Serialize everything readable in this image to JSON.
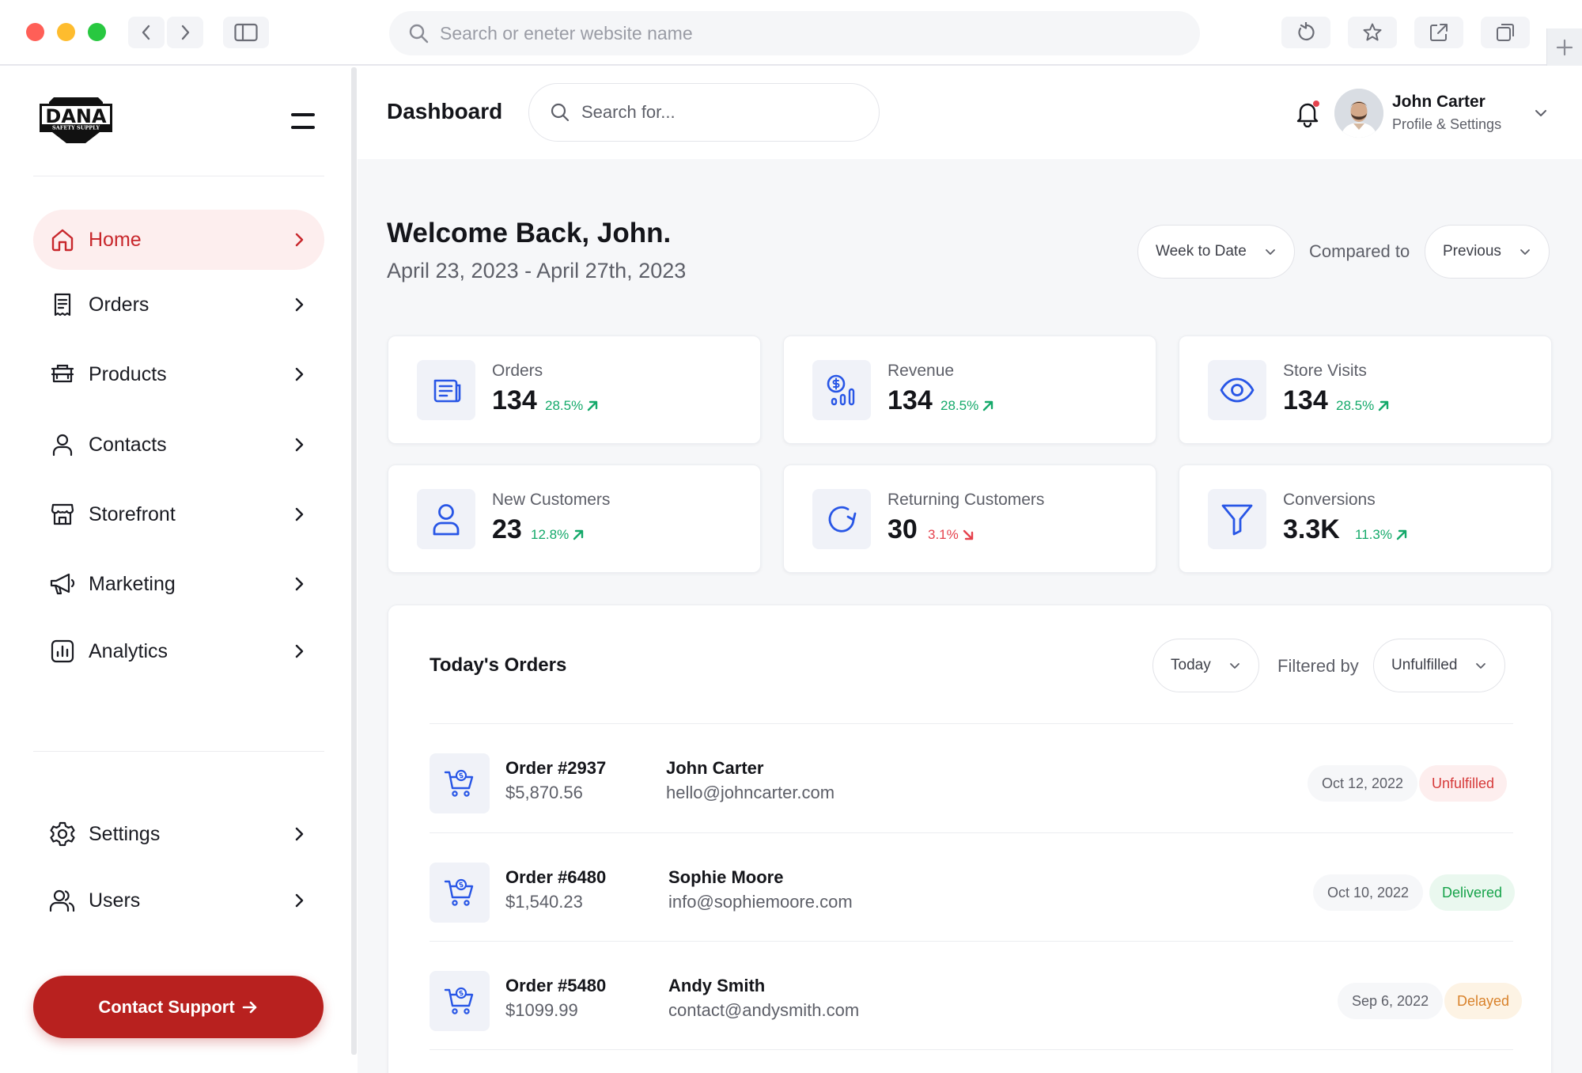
{
  "browser": {
    "url_placeholder": "Search or eneter website name",
    "traffic_colors": [
      "#ff5f57",
      "#febc2e",
      "#28c840"
    ]
  },
  "brand": {
    "logo_text": "DANA",
    "logo_subtext": "SAFETY SUPPLY"
  },
  "sidebar": {
    "items": [
      {
        "label": "Home",
        "icon": "home-icon",
        "active": true
      },
      {
        "label": "Orders",
        "icon": "receipt-icon"
      },
      {
        "label": "Products",
        "icon": "products-icon"
      },
      {
        "label": "Contacts",
        "icon": "user-icon"
      },
      {
        "label": "Storefront",
        "icon": "storefront-icon"
      },
      {
        "label": "Marketing",
        "icon": "megaphone-icon"
      },
      {
        "label": "Analytics",
        "icon": "analytics-icon"
      }
    ],
    "bottom_items": [
      {
        "label": "Settings",
        "icon": "gear-icon"
      },
      {
        "label": "Users",
        "icon": "users-icon"
      }
    ],
    "support_label": "Contact Support",
    "accent": "#b8211f"
  },
  "header": {
    "title": "Dashboard",
    "search_placeholder": "Search for...",
    "user_name": "John Carter",
    "user_sub": "Profile & Settings"
  },
  "welcome": {
    "title": "Welcome Back, John.",
    "daterange": "April 23, 2023 - April 27th, 2023",
    "range_select": "Week to Date",
    "compared_label": "Compared to",
    "compare_select": "Previous"
  },
  "stats": [
    {
      "label": "Orders",
      "value": "134",
      "change": "28.5%",
      "trend": "up",
      "icon": "orders-doc-icon"
    },
    {
      "label": "Revenue",
      "value": "134",
      "change": "28.5%",
      "trend": "up",
      "icon": "revenue-icon"
    },
    {
      "label": "Store Visits",
      "value": "134",
      "change": "28.5%",
      "trend": "up",
      "icon": "eye-icon"
    },
    {
      "label": "New Customers",
      "value": "23",
      "change": "12.8%",
      "trend": "up",
      "icon": "customer-icon"
    },
    {
      "label": "Returning Customers",
      "value": "30",
      "change": "3.1%",
      "trend": "down",
      "icon": "refresh-icon"
    },
    {
      "label": "Conversions",
      "value": "3.3K",
      "change": "11.3%",
      "trend": "up",
      "icon": "funnel-icon"
    }
  ],
  "orders": {
    "title": "Today's Orders",
    "period_select": "Today",
    "filtered_label": "Filtered by",
    "filter_select": "Unfulfilled",
    "rows": [
      {
        "number": "Order #2937",
        "amount": "$5,870.56",
        "customer": "John Carter",
        "email": "hello@johncarter.com",
        "date": "Oct 12, 2022",
        "status": "Unfulfilled",
        "status_color": "#d63a3a",
        "status_bg": "#fdeeee"
      },
      {
        "number": "Order #6480",
        "amount": "$1,540.23",
        "customer": "Sophie Moore",
        "email": "info@sophiemoore.com",
        "date": "Oct 10, 2022",
        "status": "Delivered",
        "status_color": "#16a34a",
        "status_bg": "#eaf8ef"
      },
      {
        "number": "Order #5480",
        "amount": "$1099.99",
        "customer": "Andy Smith",
        "email": "contact@andysmith.com",
        "date": "Sep 6, 2022",
        "status": "Delayed",
        "status_color": "#d9822b",
        "status_bg": "#fdf3e4"
      }
    ]
  }
}
